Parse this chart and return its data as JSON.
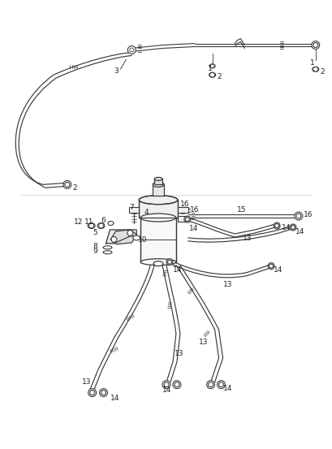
{
  "bg_color": "#ffffff",
  "line_color": "#3a3a3a",
  "line_width": 1.0,
  "label_fontsize": 6.5,
  "label_color": "#222222",
  "fig_width": 4.1,
  "fig_height": 5.53
}
